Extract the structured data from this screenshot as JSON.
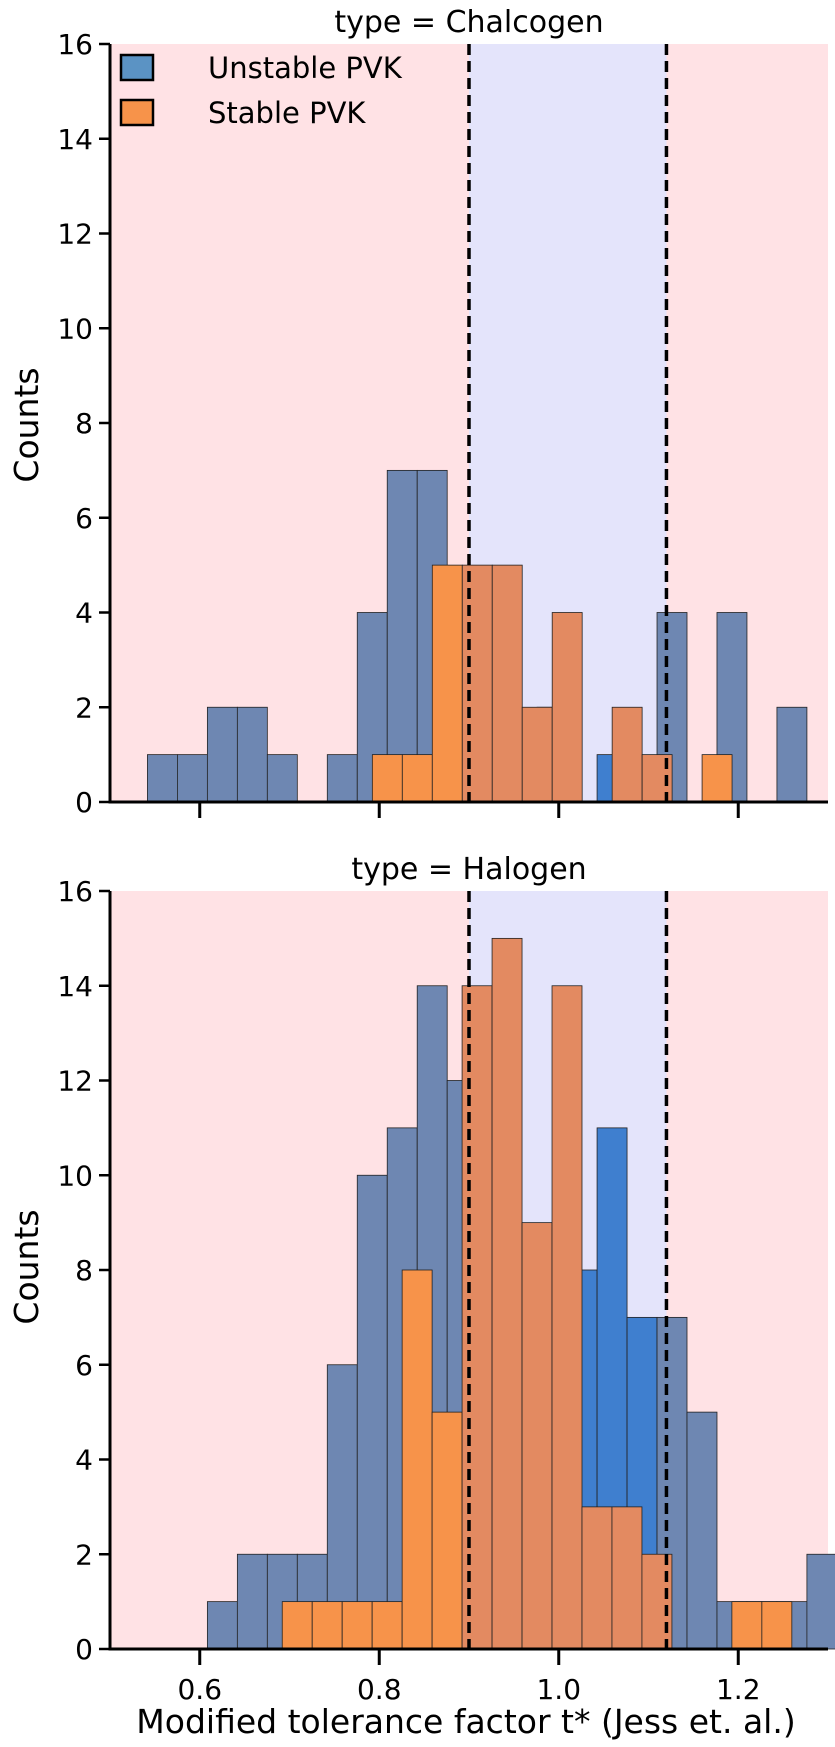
{
  "figure": {
    "xlabel": "Modified tolerance factor t* (Jess et. al.)",
    "ylabel": "Counts"
  },
  "legend": {
    "placement": "top-left",
    "entries": [
      {
        "name": "Unstable PVK",
        "color": "#5b93c4"
      },
      {
        "name": "Stable PVK",
        "color": "#f7934a"
      }
    ]
  },
  "colors": {
    "unstable": "#3f7fcf",
    "stable": "#f7934a",
    "stable_region": "#e4e4fb",
    "unstable_region": "#ffe2e5",
    "overlap_blue_on_red": "#6e87b2",
    "overlap_orange_on_blue": "#e38a61"
  },
  "chart_data": [
    {
      "type": "bar",
      "title": "type = Chalcogen",
      "xlim": [
        0.5,
        1.3
      ],
      "ylim": [
        0,
        16
      ],
      "xticks": [
        0.6,
        0.8,
        1.0,
        1.2
      ],
      "xtick_labels": [
        "",
        "",
        "",
        ""
      ],
      "yticks": [
        0,
        2,
        4,
        6,
        8,
        10,
        12,
        14,
        16
      ],
      "ytick_labels": [
        "0",
        "2",
        "4",
        "6",
        "8",
        "10",
        "12",
        "14",
        "16"
      ],
      "stable_band": [
        0.9,
        1.12
      ],
      "dashed_lines": [
        0.9,
        1.12
      ],
      "bin_width": 0.0334,
      "series": [
        {
          "name": "Unstable PVK",
          "x": [
            0.5584,
            0.5918,
            0.6252,
            0.6586,
            0.692,
            0.7588,
            0.7922,
            0.8256,
            0.859,
            0.9258,
            0.9926,
            1.0594,
            1.1262,
            1.193,
            1.2598
          ],
          "values": [
            1,
            1,
            2,
            2,
            1,
            1,
            4,
            7,
            7,
            1,
            2,
            1,
            4,
            4,
            2
          ]
        },
        {
          "name": "Stable PVK",
          "x": [
            0.809,
            0.8424,
            0.8758,
            0.9092,
            0.9426,
            0.976,
            1.0094,
            1.0762,
            1.1096,
            1.1764
          ],
          "values": [
            1,
            1,
            5,
            5,
            5,
            2,
            4,
            2,
            1,
            1
          ]
        }
      ]
    },
    {
      "type": "bar",
      "title": "type = Halogen",
      "xlim": [
        0.5,
        1.3
      ],
      "ylim": [
        0,
        16
      ],
      "xticks": [
        0.6,
        0.8,
        1.0,
        1.2
      ],
      "xtick_labels": [
        "0.6",
        "0.8",
        "1.0",
        "1.2"
      ],
      "yticks": [
        0,
        2,
        4,
        6,
        8,
        10,
        12,
        14,
        16
      ],
      "ytick_labels": [
        "0",
        "2",
        "4",
        "6",
        "8",
        "10",
        "12",
        "14",
        "16"
      ],
      "stable_band": [
        0.9,
        1.12
      ],
      "dashed_lines": [
        0.9,
        1.12
      ],
      "bin_width": 0.0334,
      "series": [
        {
          "name": "Unstable PVK",
          "x": [
            0.6252,
            0.6586,
            0.692,
            0.7254,
            0.7588,
            0.7922,
            0.8256,
            0.859,
            0.8924,
            0.9258,
            0.9592,
            0.9926,
            1.026,
            1.0594,
            1.0928,
            1.1262,
            1.1596,
            1.193,
            1.2264,
            1.2598,
            1.2932
          ],
          "values": [
            1,
            2,
            2,
            2,
            6,
            10,
            11,
            14,
            12,
            9,
            5,
            3,
            8,
            11,
            7,
            7,
            5,
            1,
            1,
            1,
            2
          ]
        },
        {
          "name": "Stable PVK",
          "x": [
            0.7086,
            0.742,
            0.7754,
            0.8088,
            0.8422,
            0.8756,
            0.909,
            0.9424,
            0.9758,
            1.0092,
            1.0426,
            1.076,
            1.1094,
            1.2096,
            1.243
          ],
          "values": [
            1,
            1,
            1,
            1,
            8,
            5,
            14,
            15,
            9,
            14,
            3,
            3,
            2,
            1,
            1
          ]
        }
      ]
    }
  ]
}
